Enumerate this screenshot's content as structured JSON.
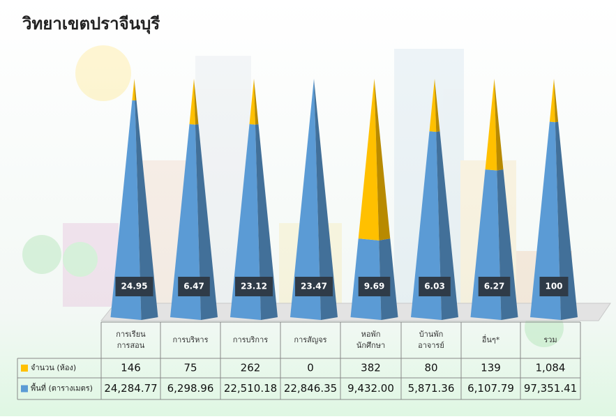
{
  "title": "วิทยาเขตปราจีนบุรี",
  "chart_data": {
    "type": "pyramid",
    "categories": [
      "การเรียน\nการสอน",
      "การบริหาร",
      "การบริการ",
      "การสัญจร",
      "หอพัก\nนักศึกษา",
      "บ้านพัก\nอาจารย์",
      "อื่นๆ*",
      "รวม"
    ],
    "ylim": [
      0,
      100
    ],
    "series": [
      {
        "name": "พื้นที่ (ตารางเมตร)",
        "color": "#5b9bd5",
        "values": [
          91,
          81,
          81,
          100,
          33,
          78,
          62,
          82
        ]
      },
      {
        "name": "จำนวน (ห้อง)",
        "color": "#ffc000",
        "values": [
          9,
          19,
          19,
          0,
          67,
          22,
          38,
          18
        ]
      }
    ],
    "data_labels": [
      "24.95",
      "6.47",
      "23.12",
      "23.47",
      "9.69",
      "6.03",
      "6.27",
      "100"
    ]
  },
  "table": {
    "rows": [
      [
        "146",
        "75",
        "262",
        "0",
        "382",
        "80",
        "139",
        "1,084"
      ],
      [
        "24,284.77",
        "6,298.96",
        "22,510.18",
        "22,846.35",
        "9,432.00",
        "5,871.36",
        "6,107.79",
        "97,351.41"
      ]
    ]
  }
}
